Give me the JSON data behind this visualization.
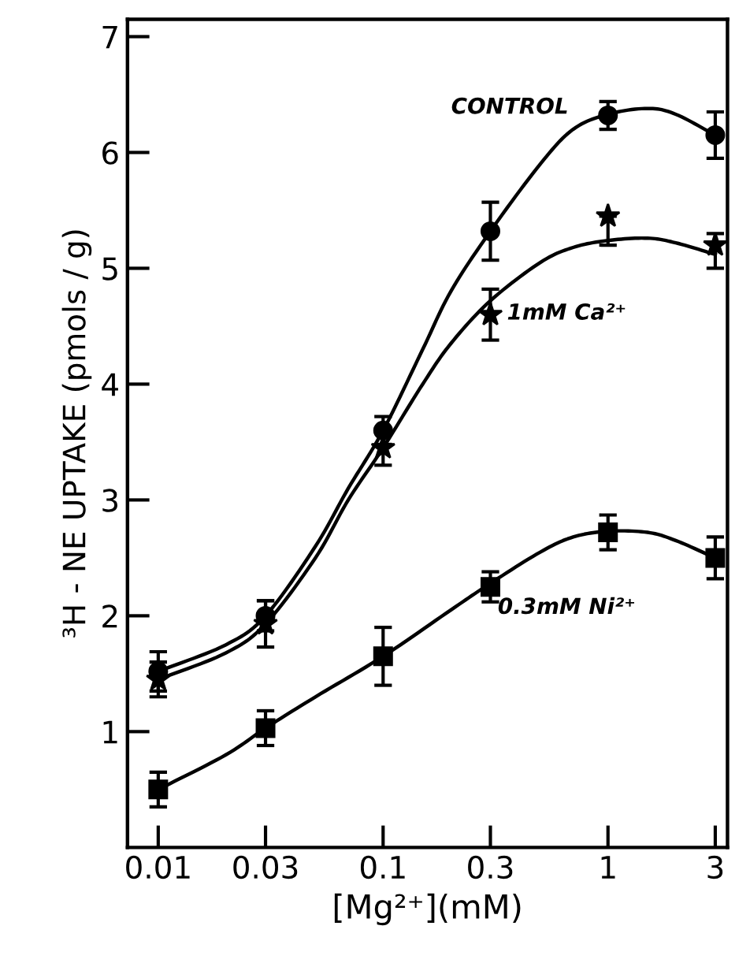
{
  "chart_data": {
    "type": "scatter",
    "xlabel": "[Mg²⁺](mM)",
    "ylabel": "³H - NE UPTAKE (pmols / g)",
    "log": "x",
    "xlim": [
      0.0073,
      3.4
    ],
    "xticks": [
      0.01,
      0.03,
      0.1,
      0.3,
      1,
      3
    ],
    "ylim": [
      0,
      7.15
    ],
    "yticks": [
      1,
      2,
      3,
      4,
      5,
      6,
      7
    ],
    "grid": false,
    "series": [
      {
        "name": "CONTROL",
        "color": "#000000",
        "marker": "circle",
        "x": [
          0.01,
          0.03,
          0.1,
          0.3,
          1,
          3
        ],
        "values": [
          1.52,
          2.0,
          3.6,
          5.32,
          6.32,
          6.15
        ],
        "errors": [
          0.17,
          0.13,
          0.12,
          0.25,
          0.12,
          0.2
        ]
      },
      {
        "name": "1mM Ca²⁺",
        "color": "#000000",
        "marker": "star",
        "x": [
          0.01,
          0.03,
          0.1,
          0.3,
          1,
          3
        ],
        "values": [
          1.45,
          1.93,
          3.45,
          4.6,
          5.45,
          5.2
        ],
        "errors": [
          0.15,
          0.2,
          0.15,
          0.22,
          [
            5.2,
            5.45
          ],
          [
            5.0,
            5.3
          ]
        ]
      },
      {
        "name": "0.3mM Ni²⁺",
        "color": "#000000",
        "marker": "square",
        "x": [
          0.01,
          0.03,
          0.1,
          0.3,
          1,
          3
        ],
        "values": [
          0.5,
          1.03,
          1.65,
          2.25,
          2.72,
          2.5
        ],
        "errors": [
          0.15,
          0.15,
          0.25,
          0.13,
          0.15,
          0.18
        ]
      },
      {
        "type": "line",
        "color": "#000000",
        "marker": "none",
        "line_style": "solid",
        "x": [
          0.01,
          0.02,
          0.03,
          0.05,
          0.07,
          0.1,
          0.15,
          0.2,
          0.3,
          0.5,
          0.7,
          1,
          1.5,
          2,
          3
        ],
        "values": [
          1.52,
          1.75,
          2.0,
          2.6,
          3.1,
          3.6,
          4.3,
          4.8,
          5.32,
          5.9,
          6.2,
          6.33,
          6.38,
          6.33,
          6.15
        ]
      },
      {
        "type": "line",
        "color": "#000000",
        "marker": "none",
        "line_style": "solid",
        "x": [
          0.01,
          0.02,
          0.03,
          0.05,
          0.07,
          0.1,
          0.15,
          0.2,
          0.3,
          0.5,
          0.7,
          1,
          1.5,
          2,
          3
        ],
        "values": [
          1.45,
          1.68,
          1.93,
          2.5,
          3.0,
          3.45,
          4.0,
          4.35,
          4.72,
          5.05,
          5.18,
          5.24,
          5.26,
          5.22,
          5.12
        ]
      },
      {
        "type": "line",
        "color": "#000000",
        "marker": "none",
        "line_style": "solid",
        "x": [
          0.01,
          0.02,
          0.03,
          0.05,
          0.1,
          0.2,
          0.3,
          0.5,
          0.7,
          1,
          1.5,
          2,
          3
        ],
        "values": [
          0.5,
          0.8,
          1.03,
          1.3,
          1.65,
          2.05,
          2.28,
          2.55,
          2.68,
          2.73,
          2.72,
          2.65,
          2.5
        ]
      }
    ]
  }
}
